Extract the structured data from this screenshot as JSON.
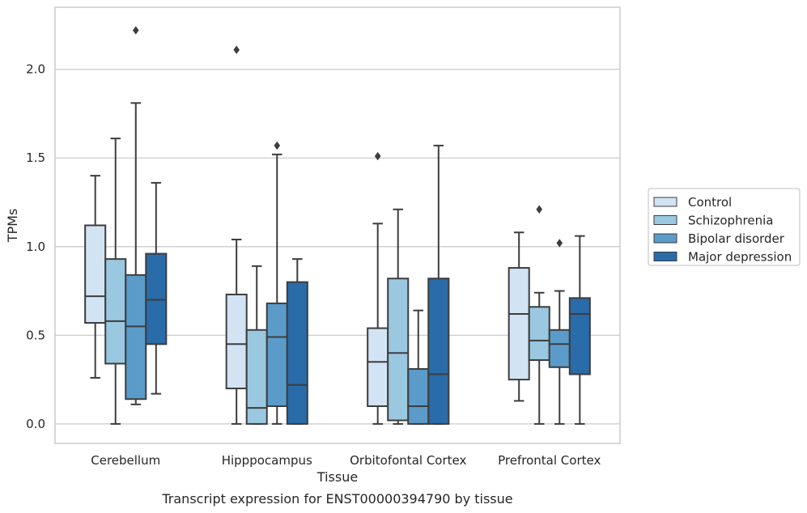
{
  "caption": "Transcript expression for ENST00000394790 by tissue",
  "chart_data": {
    "type": "box",
    "xlabel": "Tissue",
    "ylabel": "TPMs",
    "ylim": [
      -0.11,
      2.35
    ],
    "yticks": [
      0.0,
      0.5,
      1.0,
      1.5,
      2.0
    ],
    "ytick_labels": [
      "0.0",
      "0.5",
      "1.0",
      "1.5",
      "2.0"
    ],
    "grid": true,
    "legend_position": "right",
    "categories": [
      "Cerebellum",
      "Hipppocampus",
      "Orbitofontal Cortex",
      "Prefrontal Cortex"
    ],
    "series": [
      {
        "name": "Control",
        "color": "#d2e3f3",
        "boxes": [
          {
            "whislo": 0.26,
            "q1": 0.57,
            "med": 0.72,
            "q3": 1.12,
            "whishi": 1.4,
            "fliers": []
          },
          {
            "whislo": 0.0,
            "q1": 0.2,
            "med": 0.45,
            "q3": 0.73,
            "whishi": 1.04,
            "fliers": [
              2.11
            ]
          },
          {
            "whislo": 0.0,
            "q1": 0.1,
            "med": 0.35,
            "q3": 0.54,
            "whishi": 1.13,
            "fliers": [
              1.51
            ]
          },
          {
            "whislo": 0.13,
            "q1": 0.25,
            "med": 0.62,
            "q3": 0.88,
            "whishi": 1.08,
            "fliers": []
          }
        ]
      },
      {
        "name": "Schizophrenia",
        "color": "#9ac8e0",
        "boxes": [
          {
            "whislo": 0.0,
            "q1": 0.34,
            "med": 0.58,
            "q3": 0.93,
            "whishi": 1.61,
            "fliers": []
          },
          {
            "whislo": 0.0,
            "q1": 0.0,
            "med": 0.09,
            "q3": 0.53,
            "whishi": 0.89,
            "fliers": []
          },
          {
            "whislo": 0.0,
            "q1": 0.02,
            "med": 0.4,
            "q3": 0.82,
            "whishi": 1.21,
            "fliers": []
          },
          {
            "whislo": 0.0,
            "q1": 0.36,
            "med": 0.47,
            "q3": 0.66,
            "whishi": 0.74,
            "fliers": [
              1.21
            ]
          }
        ]
      },
      {
        "name": "Bipolar disorder",
        "color": "#5a9bc9",
        "boxes": [
          {
            "whislo": 0.11,
            "q1": 0.14,
            "med": 0.55,
            "q3": 0.84,
            "whishi": 1.81,
            "fliers": [
              2.22
            ]
          },
          {
            "whislo": 0.0,
            "q1": 0.1,
            "med": 0.49,
            "q3": 0.68,
            "whishi": 1.52,
            "fliers": [
              1.57
            ]
          },
          {
            "whislo": 0.0,
            "q1": 0.0,
            "med": 0.1,
            "q3": 0.31,
            "whishi": 0.64,
            "fliers": []
          },
          {
            "whislo": 0.0,
            "q1": 0.32,
            "med": 0.45,
            "q3": 0.53,
            "whishi": 0.75,
            "fliers": [
              1.02
            ]
          }
        ]
      },
      {
        "name": "Major depression",
        "color": "#2a6ba9",
        "boxes": [
          {
            "whislo": 0.17,
            "q1": 0.45,
            "med": 0.7,
            "q3": 0.96,
            "whishi": 1.36,
            "fliers": []
          },
          {
            "whislo": 0.0,
            "q1": 0.0,
            "med": 0.22,
            "q3": 0.8,
            "whishi": 0.93,
            "fliers": []
          },
          {
            "whislo": 0.0,
            "q1": 0.0,
            "med": 0.28,
            "q3": 0.82,
            "whishi": 1.57,
            "fliers": []
          },
          {
            "whislo": 0.0,
            "q1": 0.28,
            "med": 0.62,
            "q3": 0.71,
            "whishi": 1.06,
            "fliers": []
          }
        ]
      }
    ]
  }
}
